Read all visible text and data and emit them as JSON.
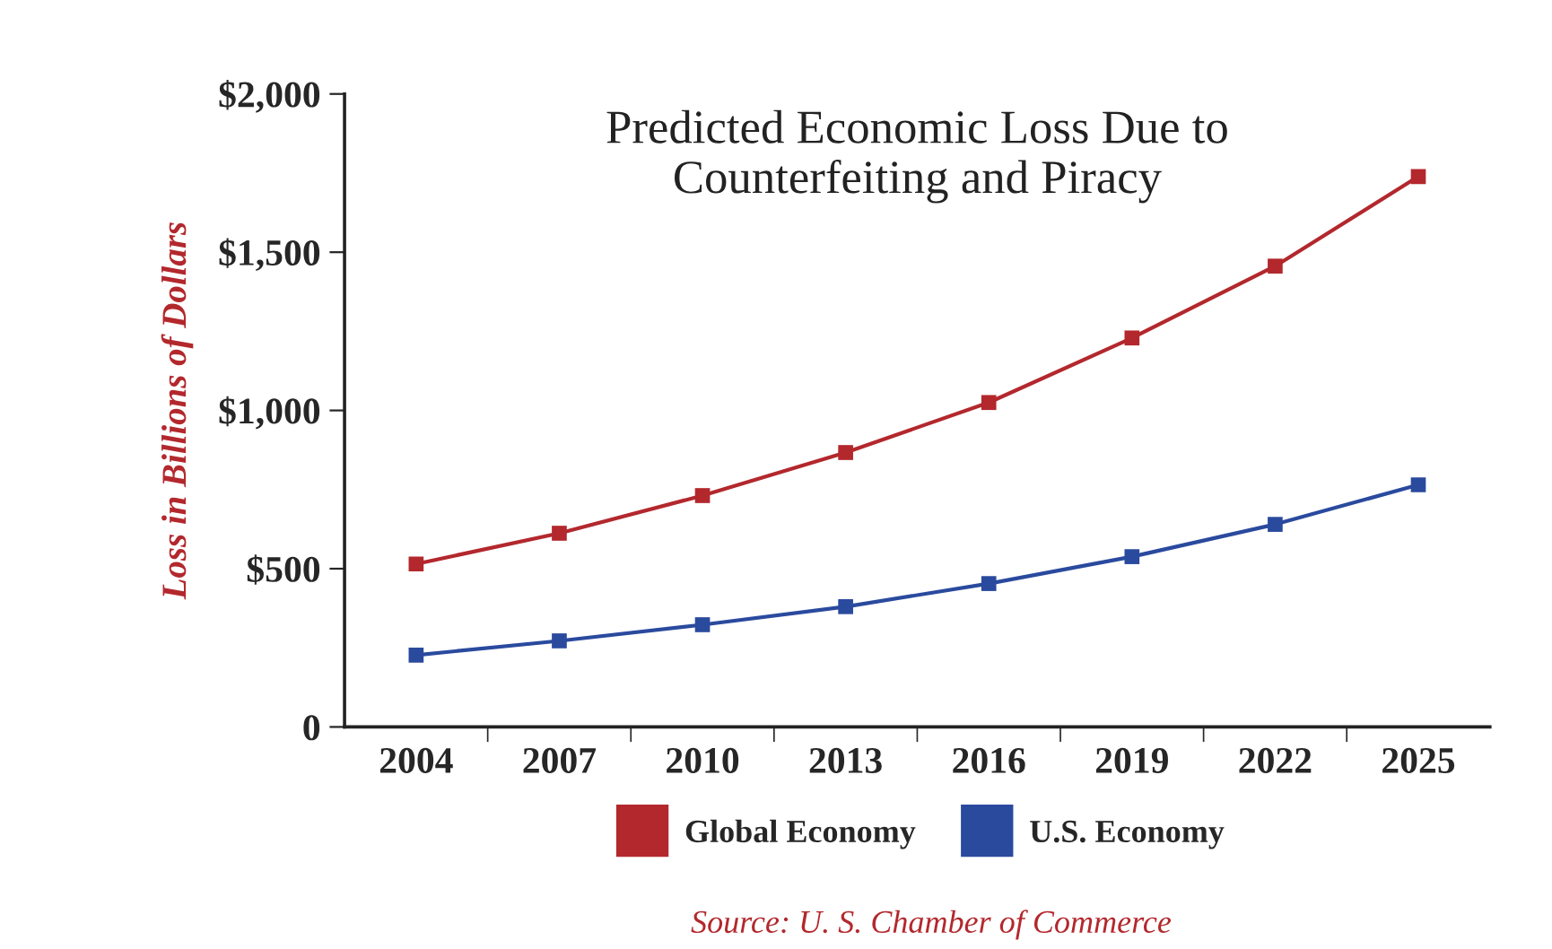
{
  "chart_data": {
    "type": "line",
    "title": "Predicted Economic Loss Due to\nCounterfeiting and Piracy",
    "ylabel": "Loss in Billions of Dollars",
    "categories": [
      "2004",
      "2007",
      "2010",
      "2013",
      "2016",
      "2019",
      "2022",
      "2025"
    ],
    "series": [
      {
        "name": "Global Economy",
        "color": "#b3282d",
        "values": [
          515,
          612,
          731,
          867,
          1025,
          1229,
          1456,
          1739
        ]
      },
      {
        "name": "U.S. Economy",
        "color": "#2a4a9e",
        "values": [
          227,
          272,
          323,
          380,
          453,
          538,
          640,
          765
        ]
      }
    ],
    "ylim": [
      0,
      2000
    ],
    "yticks": [
      {
        "value": 0,
        "label": "0"
      },
      {
        "value": 500,
        "label": "$500"
      },
      {
        "value": 1000,
        "label": "$1,000"
      },
      {
        "value": 1500,
        "label": "$1,500"
      },
      {
        "value": 2000,
        "label": "$2,000"
      }
    ],
    "marker": "square",
    "line_style": "solid",
    "grid": false,
    "legend": "bottom",
    "annotations": [
      "Source: U. S. Chamber of Commerce"
    ]
  }
}
